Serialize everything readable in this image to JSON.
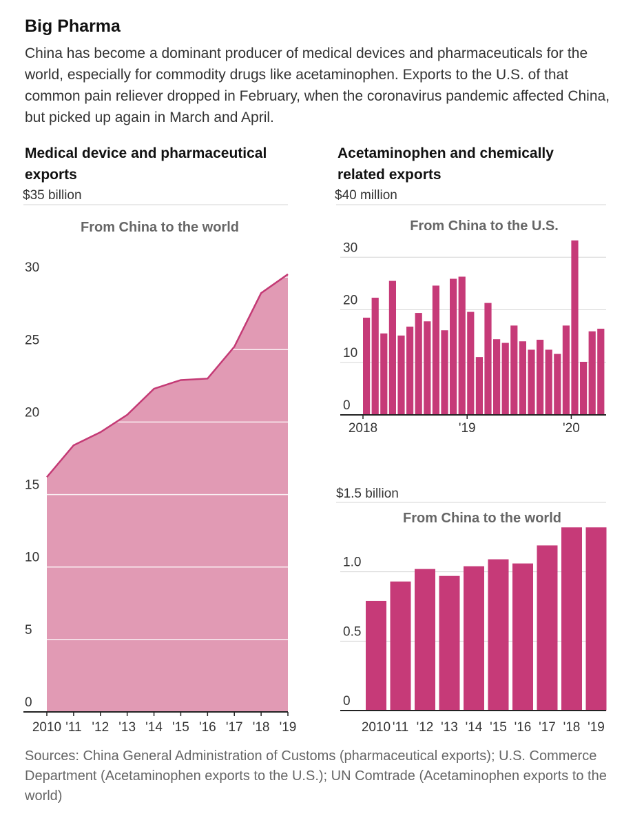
{
  "header": {
    "title": "Big Pharma",
    "subtitle": "China has become a dominant producer of medical devices and pharmaceuticals for the world, especially for commodity drugs like acetaminophen. Exports to the U.S. of that common pain reliever dropped in February, when the coronavirus pandemic affected China, but picked up again in March and April."
  },
  "left": {
    "heading": "Medical device and pharmaceutical exports",
    "unit_label": "$35 billion"
  },
  "right": {
    "heading": "Acetaminophen and chemically related exports",
    "top_unit_label": "$40 million",
    "bottom_unit_label": "$1.5 billion"
  },
  "footer": {
    "sources": "Sources: China General Administration of Customs (pharmaceutical exports); U.S. Commerce Department (Acetaminophen exports to the U.S.); UN Comtrade (Acetaminophen exports to the world)"
  },
  "colors": {
    "area_fill": "#e19ab4",
    "area_line": "#c43a75",
    "bar": "#c63a78",
    "grid": "#d6d6d6",
    "axis": "#222222"
  },
  "chart_data": [
    {
      "type": "area",
      "title": "From China to the world",
      "ylabel": "$35 billion",
      "x": [
        "2010",
        "'11",
        "'12",
        "'13",
        "'14",
        "'15",
        "'16",
        "'17",
        "'18",
        "'19"
      ],
      "values": [
        16.2,
        18.4,
        19.3,
        20.5,
        22.3,
        22.9,
        23.0,
        25.2,
        28.9,
        30.2
      ],
      "ylim": [
        0,
        35
      ],
      "yticks": [
        "0",
        "5",
        "10",
        "15",
        "20",
        "25",
        "30"
      ],
      "ytick_values": [
        0,
        5,
        10,
        15,
        20,
        25,
        30
      ],
      "grid": true
    },
    {
      "type": "bar",
      "title": "From China to the U.S.",
      "ylabel": "$40 million",
      "x_labels": [
        {
          "label": "2018",
          "index": 0
        },
        {
          "label": "'19",
          "index": 12
        },
        {
          "label": "'20",
          "index": 24
        }
      ],
      "values": [
        18.5,
        22.3,
        15.5,
        25.5,
        15.1,
        16.8,
        19.4,
        17.8,
        24.6,
        16.1,
        25.9,
        26.3,
        19.6,
        11.0,
        21.3,
        14.4,
        13.7,
        17.0,
        14.0,
        12.4,
        14.3,
        12.4,
        11.6,
        17.0,
        33.2,
        10.1,
        15.9,
        16.4
      ],
      "ylim": [
        0,
        40
      ],
      "yticks": [
        "0",
        "10",
        "20",
        "30"
      ],
      "ytick_values": [
        0,
        10,
        20,
        30
      ],
      "grid": true
    },
    {
      "type": "bar",
      "title": "From China to the world",
      "ylabel": "$1.5 billion",
      "categories": [
        "2010",
        "'11",
        "'12",
        "'13",
        "'14",
        "'15",
        "'16",
        "'17",
        "'18",
        "'19"
      ],
      "values": [
        0.79,
        0.93,
        1.02,
        0.97,
        1.04,
        1.09,
        1.06,
        1.19,
        1.32,
        1.32
      ],
      "ylim": [
        0,
        1.5
      ],
      "yticks": [
        "0",
        "0.5",
        "1.0"
      ],
      "ytick_values": [
        0,
        0.5,
        1.0
      ],
      "grid": true
    }
  ]
}
